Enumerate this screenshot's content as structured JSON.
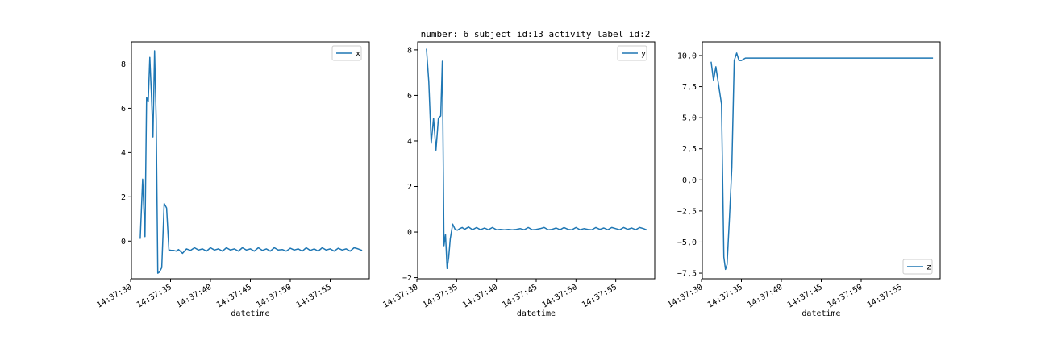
{
  "chart_data": [
    {
      "type": "line",
      "title": "",
      "xlabel": "datetime",
      "ylabel": "",
      "x_ticks": [
        "14:37:30",
        "14:37:35",
        "14:37:40",
        "14:37:45",
        "14:37:50",
        "14:37:55"
      ],
      "y_ticks": [
        "0",
        "2",
        "4",
        "6",
        "8"
      ],
      "ylim": [
        -1.7,
        9.0
      ],
      "xlim": [
        30.1,
        59.9
      ],
      "legend_position": "top-right",
      "grid": false,
      "series": [
        {
          "name": "x",
          "color": "#1f77b4",
          "x": [
            31.2,
            31.5,
            31.8,
            32.0,
            32.2,
            32.4,
            32.6,
            32.8,
            33.0,
            33.2,
            33.4,
            33.6,
            33.9,
            34.2,
            34.5,
            34.8,
            35.1,
            35.4,
            35.7,
            36.0,
            36.5,
            37.0,
            37.5,
            38.0,
            38.5,
            39.0,
            39.5,
            40.0,
            40.5,
            41.0,
            41.5,
            42.0,
            42.5,
            43.0,
            43.5,
            44.0,
            44.5,
            45.0,
            45.5,
            46.0,
            46.5,
            47.0,
            47.5,
            48.0,
            48.5,
            49.0,
            49.5,
            50.0,
            50.5,
            51.0,
            51.5,
            52.0,
            52.5,
            53.0,
            53.5,
            54.0,
            54.5,
            55.0,
            55.5,
            56.0,
            56.5,
            57.0,
            57.5,
            58.0,
            58.5,
            59.0
          ],
          "values": [
            0.1,
            2.8,
            0.2,
            6.5,
            6.3,
            8.3,
            6.7,
            4.7,
            8.6,
            5.5,
            -1.45,
            -1.4,
            -1.2,
            1.7,
            1.5,
            -0.4,
            -0.42,
            -0.42,
            -0.45,
            -0.38,
            -0.55,
            -0.35,
            -0.42,
            -0.3,
            -0.4,
            -0.35,
            -0.45,
            -0.3,
            -0.4,
            -0.35,
            -0.45,
            -0.3,
            -0.4,
            -0.35,
            -0.45,
            -0.3,
            -0.4,
            -0.35,
            -0.45,
            -0.3,
            -0.42,
            -0.35,
            -0.45,
            -0.3,
            -0.4,
            -0.38,
            -0.45,
            -0.32,
            -0.4,
            -0.35,
            -0.45,
            -0.3,
            -0.42,
            -0.35,
            -0.45,
            -0.3,
            -0.4,
            -0.35,
            -0.45,
            -0.32,
            -0.4,
            -0.35,
            -0.45,
            -0.3,
            -0.35,
            -0.42
          ]
        }
      ]
    },
    {
      "type": "line",
      "title": "number: 6 subject_id:13 activity_label_id:2",
      "xlabel": "datetime",
      "ylabel": "",
      "x_ticks": [
        "14:37:30",
        "14:37:35",
        "14:37:40",
        "14:37:45",
        "14:37:50",
        "14:37:55"
      ],
      "y_ticks": [
        "−2",
        "0",
        "2",
        "4",
        "6",
        "8"
      ],
      "ylim": [
        -2.05,
        8.35
      ],
      "xlim": [
        30.1,
        59.9
      ],
      "legend_position": "top-right",
      "grid": false,
      "series": [
        {
          "name": "y",
          "color": "#1f77b4",
          "x": [
            31.2,
            31.5,
            31.8,
            32.1,
            32.4,
            32.7,
            33.0,
            33.2,
            33.4,
            33.6,
            33.8,
            34.0,
            34.2,
            34.5,
            34.8,
            35.1,
            35.4,
            35.7,
            36.0,
            36.5,
            37.0,
            37.5,
            38.0,
            38.5,
            39.0,
            39.5,
            40.0,
            40.5,
            41.0,
            41.5,
            42.0,
            42.5,
            43.0,
            43.5,
            44.0,
            44.5,
            45.0,
            45.5,
            46.0,
            46.5,
            47.0,
            47.5,
            48.0,
            48.5,
            49.0,
            49.5,
            50.0,
            50.5,
            51.0,
            51.5,
            52.0,
            52.5,
            53.0,
            53.5,
            54.0,
            54.5,
            55.0,
            55.5,
            56.0,
            56.5,
            57.0,
            57.5,
            58.0,
            58.5,
            59.0
          ],
          "values": [
            8.05,
            6.6,
            3.9,
            5.0,
            3.6,
            5.0,
            5.1,
            7.5,
            -0.6,
            -0.1,
            -1.6,
            -1.1,
            -0.3,
            0.35,
            0.12,
            0.08,
            0.15,
            0.2,
            0.12,
            0.22,
            0.1,
            0.2,
            0.1,
            0.18,
            0.1,
            0.2,
            0.1,
            0.12,
            0.1,
            0.12,
            0.1,
            0.12,
            0.15,
            0.1,
            0.2,
            0.1,
            0.12,
            0.15,
            0.2,
            0.1,
            0.12,
            0.18,
            0.1,
            0.2,
            0.12,
            0.1,
            0.2,
            0.1,
            0.15,
            0.12,
            0.1,
            0.2,
            0.12,
            0.18,
            0.1,
            0.2,
            0.15,
            0.1,
            0.2,
            0.12,
            0.18,
            0.1,
            0.2,
            0.15,
            0.08
          ]
        }
      ]
    },
    {
      "type": "line",
      "title": "",
      "xlabel": "datetime",
      "ylabel": "",
      "x_ticks": [
        "14:37:30",
        "14:37:35",
        "14:37:40",
        "14:37:45",
        "14:37:50",
        "14:37:55"
      ],
      "y_ticks": [
        "−7,5",
        "−5,0",
        "−2,5",
        "0,0",
        "2,5",
        "5,0",
        "7,5",
        "10,0"
      ],
      "ylim": [
        -7.95,
        11.1
      ],
      "xlim": [
        30.1,
        59.9
      ],
      "legend_position": "bottom-right",
      "grid": false,
      "series": [
        {
          "name": "z",
          "color": "#1f77b4",
          "x": [
            31.2,
            31.5,
            31.8,
            32.1,
            32.5,
            32.8,
            33.0,
            33.2,
            33.5,
            33.8,
            34.1,
            34.4,
            34.7,
            35.0,
            35.5,
            36.0,
            37.0,
            38.0,
            40.0,
            45.0,
            50.0,
            55.0,
            59.0
          ],
          "values": [
            9.5,
            8.0,
            9.1,
            7.8,
            6.1,
            -6.2,
            -7.2,
            -6.8,
            -3.0,
            1.0,
            9.6,
            10.2,
            9.6,
            9.6,
            9.8,
            9.8,
            9.8,
            9.8,
            9.8,
            9.8,
            9.8,
            9.8,
            9.8
          ]
        }
      ]
    }
  ]
}
